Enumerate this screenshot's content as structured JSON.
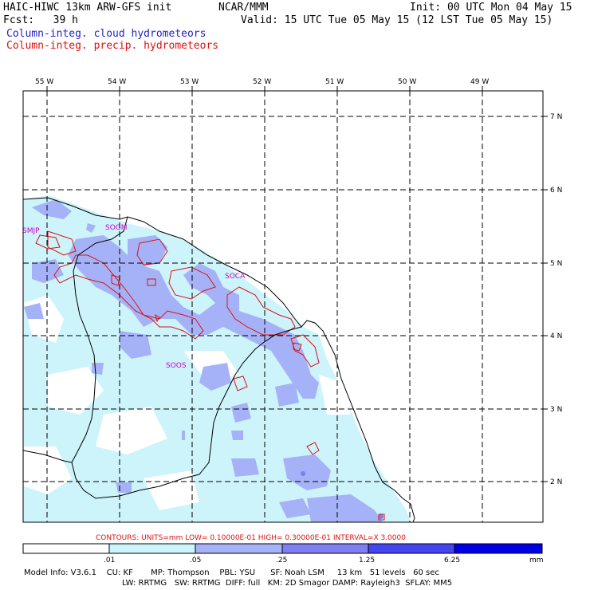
{
  "header": {
    "model": "HAIC-HIWC 13km ARW-GFS init",
    "org": "NCAR/MMM",
    "init": "Init: 00 UTC Mon 04 May 15",
    "fcst": "Fcst:   39 h",
    "valid": "Valid: 15 UTC Tue 05 May 15 (12 LST Tue 05 May 15)",
    "field1": "Column-integ. cloud hydrometeors",
    "field2": "Column-integ. precip. hydrometeors"
  },
  "map": {
    "lon_labels": [
      "55 W",
      "54 W",
      "53 W",
      "52 W",
      "51 W",
      "50 W",
      "49 W"
    ],
    "lat_labels": [
      "7 N",
      "6 N",
      "5 N",
      "4 N",
      "3 N",
      "2 N"
    ],
    "cities": [
      "SMJP",
      "SOGM",
      "SOCA",
      "SOOS"
    ]
  },
  "contour_note": "CONTOURS:  UNITS=mm  LOW= 0.10000E-01  HIGH= 0.30000E-01  INTERVAL=X  3.0000",
  "colorbar": {
    "labels": [
      ".01",
      ".05",
      ".25",
      "1.25",
      "6.25",
      "mm"
    ],
    "colors": [
      "#ffffff",
      "#ccf4fa",
      "#a6b2f7",
      "#7e7ef2",
      "#4444f0",
      "#0000e6"
    ]
  },
  "footer": {
    "line1": "Model Info: V3.6.1    CU: KF       MP: Thompson    PBL: YSU      SF: Noah LSM     13 km   51 levels   60 sec",
    "line2": "LW: RRTMG   SW: RRTMG  DIFF: full   KM: 2D Smagor DAMP: Rayleigh3  SFLAY: MM5"
  },
  "colors": {
    "cloud": "#2222cc",
    "precip": "#dd1111",
    "city": "#cc00cc"
  }
}
